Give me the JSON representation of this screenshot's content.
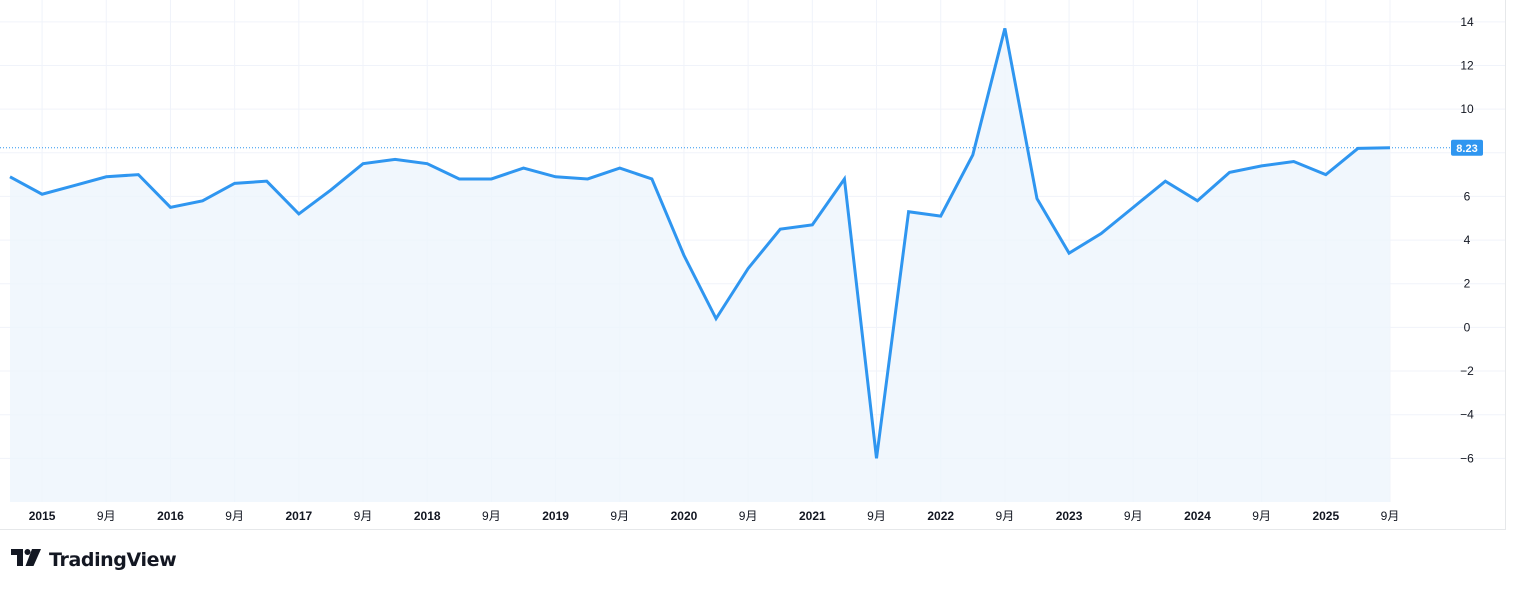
{
  "brand": {
    "name": "TradingView",
    "logo_icon": "tradingview-logo-icon"
  },
  "colors": {
    "line": "#2f96f0",
    "fill": "#eef5fc",
    "grid": "#f0f3fa",
    "label_bg": "#2f96f0",
    "text": "#131722"
  },
  "chart_data": {
    "type": "area",
    "title": "",
    "xlabel": "",
    "ylabel": "",
    "ylim": [
      -8,
      15
    ],
    "y_ticks": [
      14,
      12,
      10,
      8,
      6,
      4,
      2,
      0,
      -2,
      -4,
      -6
    ],
    "y_tick_labels": [
      "14",
      "12",
      "10",
      "",
      "6",
      "4",
      "2",
      "0",
      "−2",
      "−4",
      "−6"
    ],
    "x_tick_labels": [
      "2015",
      "9月",
      "2016",
      "9月",
      "2017",
      "9月",
      "2018",
      "9月",
      "2019",
      "9月",
      "2020",
      "9月",
      "2021",
      "9月",
      "2022",
      "9月",
      "2023",
      "9月",
      "2024",
      "9月",
      "2025",
      "9月"
    ],
    "grid": true,
    "last_value_label": "8.23",
    "series": [
      {
        "x": [
          "2014-12",
          "2015-03",
          "2015-06",
          "2015-09",
          "2015-12",
          "2016-03",
          "2016-06",
          "2016-09",
          "2016-12",
          "2017-03",
          "2017-06",
          "2017-09",
          "2017-12",
          "2018-03",
          "2018-06",
          "2018-09",
          "2018-12",
          "2019-03",
          "2019-06",
          "2019-09",
          "2019-12",
          "2020-03",
          "2020-06",
          "2020-09",
          "2020-12",
          "2021-03",
          "2021-06",
          "2021-09",
          "2021-12",
          "2022-03",
          "2022-06",
          "2022-09",
          "2022-12",
          "2023-03",
          "2023-06",
          "2023-09",
          "2023-12",
          "2024-03",
          "2024-06",
          "2024-09",
          "2024-12",
          "2025-03",
          "2025-06",
          "2025-09"
        ],
        "values": [
          6.9,
          6.1,
          6.5,
          6.9,
          7.0,
          5.5,
          5.8,
          6.6,
          6.7,
          5.2,
          6.3,
          7.5,
          7.7,
          7.5,
          6.8,
          6.8,
          7.3,
          6.9,
          6.8,
          7.3,
          6.8,
          3.3,
          0.4,
          2.7,
          4.5,
          4.7,
          6.8,
          -6.0,
          5.3,
          5.1,
          7.9,
          13.7,
          5.9,
          3.4,
          4.3,
          5.5,
          6.7,
          5.8,
          7.1,
          7.4,
          7.6,
          7.0,
          8.2,
          8.23
        ]
      }
    ]
  }
}
